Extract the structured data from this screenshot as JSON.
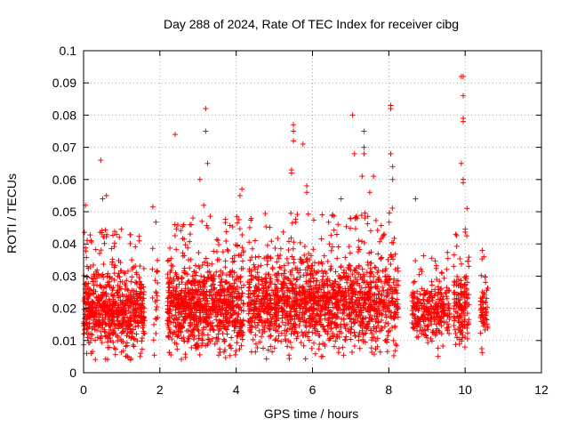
{
  "chart_data": {
    "type": "scatter",
    "title": "Day 288 of 2024, Rate Of TEC Index for receiver cibg",
    "xlabel": "GPS time / hours",
    "ylabel": "ROTI / TECUs",
    "xlim": [
      0,
      12
    ],
    "ylim": [
      0,
      0.1
    ],
    "x_ticks": [
      0,
      2,
      4,
      6,
      8,
      10,
      12
    ],
    "x_tick_labels": [
      "0",
      "2",
      "4",
      "6",
      "8",
      "10",
      "12"
    ],
    "y_ticks": [
      0,
      0.01,
      0.02,
      0.03,
      0.04,
      0.05,
      0.06,
      0.07,
      0.08,
      0.09,
      0.1
    ],
    "y_tick_labels": [
      "0",
      "0.01",
      "0.02",
      "0.03",
      "0.04",
      "0.05",
      "0.06",
      "0.07",
      "0.08",
      "0.09",
      "0.1"
    ],
    "grid": true,
    "marker": "+",
    "marker_color": "#ff0000",
    "series": [
      {
        "name": "ROTI",
        "clusters": [
          {
            "x_range": [
              0.0,
              1.6
            ],
            "y_base": 0.019,
            "spread": 0.008,
            "count": 700
          },
          {
            "x_range": [
              1.8,
              1.95
            ],
            "y_base": 0.02,
            "spread": 0.012,
            "count": 25
          },
          {
            "x_range": [
              2.2,
              4.2
            ],
            "y_base": 0.02,
            "spread": 0.009,
            "count": 900
          },
          {
            "x_range": [
              4.3,
              8.0
            ],
            "y_base": 0.021,
            "spread": 0.009,
            "count": 1500
          },
          {
            "x_range": [
              8.0,
              8.25
            ],
            "y_base": 0.022,
            "spread": 0.01,
            "count": 80
          },
          {
            "x_range": [
              8.6,
              9.6
            ],
            "y_base": 0.019,
            "spread": 0.006,
            "count": 300
          },
          {
            "x_range": [
              9.7,
              10.1
            ],
            "y_base": 0.02,
            "spread": 0.008,
            "count": 150
          },
          {
            "x_range": [
              10.4,
              10.6
            ],
            "y_base": 0.018,
            "spread": 0.006,
            "count": 60
          }
        ],
        "outliers": [
          [
            0.45,
            0.066
          ],
          [
            2.4,
            0.074
          ],
          [
            3.05,
            0.06
          ],
          [
            3.2,
            0.082
          ],
          [
            3.2,
            0.075
          ],
          [
            3.25,
            0.065
          ],
          [
            5.5,
            0.077
          ],
          [
            5.5,
            0.075
          ],
          [
            5.5,
            0.072
          ],
          [
            5.75,
            0.071
          ],
          [
            5.45,
            0.063
          ],
          [
            5.45,
            0.062
          ],
          [
            5.85,
            0.058
          ],
          [
            7.05,
            0.08
          ],
          [
            7.1,
            0.068
          ],
          [
            7.35,
            0.075
          ],
          [
            7.35,
            0.07
          ],
          [
            7.35,
            0.068
          ],
          [
            7.3,
            0.061
          ],
          [
            7.6,
            0.061
          ],
          [
            8.05,
            0.083
          ],
          [
            8.05,
            0.082
          ],
          [
            8.05,
            0.068
          ],
          [
            8.1,
            0.064
          ],
          [
            8.1,
            0.06
          ],
          [
            9.95,
            0.092
          ],
          [
            9.9,
            0.092
          ],
          [
            9.95,
            0.086
          ],
          [
            9.95,
            0.079
          ],
          [
            9.95,
            0.078
          ],
          [
            9.9,
            0.065
          ],
          [
            9.95,
            0.06
          ],
          [
            9.95,
            0.059
          ],
          [
            4.15,
            0.057
          ],
          [
            4.1,
            0.055
          ],
          [
            0.5,
            0.054
          ],
          [
            0.6,
            0.055
          ],
          [
            0.05,
            0.052
          ],
          [
            3.15,
            0.052
          ],
          [
            5.85,
            0.056
          ],
          [
            6.75,
            0.054
          ],
          [
            7.5,
            0.056
          ],
          [
            8.7,
            0.054
          ],
          [
            10.05,
            0.051
          ],
          [
            10.45,
            0.038
          ]
        ]
      }
    ]
  }
}
